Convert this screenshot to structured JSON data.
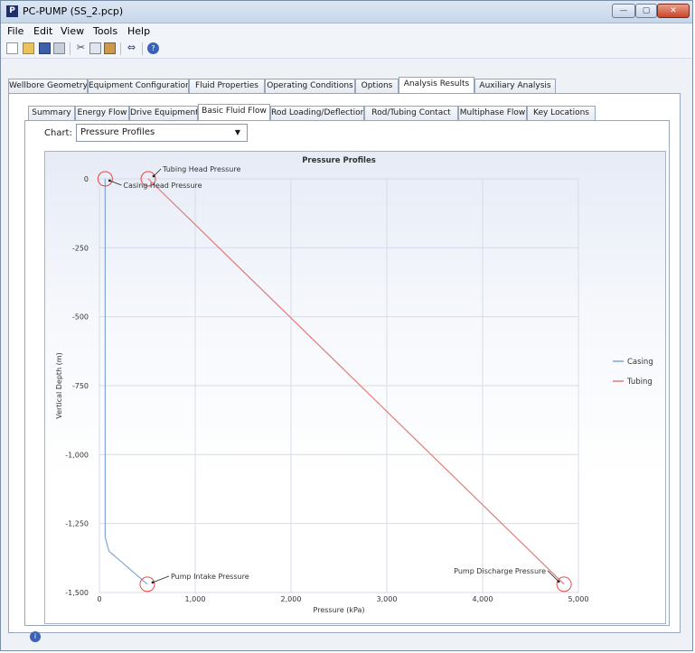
{
  "window": {
    "title": "PC-PUMP (SS_2.pcp)"
  },
  "menu": {
    "file": "File",
    "edit": "Edit",
    "view": "View",
    "tools": "Tools",
    "help": "Help"
  },
  "main_tabs": [
    {
      "label": "Wellbore Geometry"
    },
    {
      "label": "Equipment Configuration"
    },
    {
      "label": "Fluid Properties"
    },
    {
      "label": "Operating Conditions"
    },
    {
      "label": "Options"
    },
    {
      "label": "Analysis Results"
    },
    {
      "label": "Auxiliary Analysis"
    }
  ],
  "sub_tabs": [
    {
      "label": "Summary"
    },
    {
      "label": "Energy Flow"
    },
    {
      "label": "Drive Equipment"
    },
    {
      "label": "Basic Fluid Flow"
    },
    {
      "label": "Rod Loading/Deflection"
    },
    {
      "label": "Rod/Tubing Contact"
    },
    {
      "label": "Multiphase Flow"
    },
    {
      "label": "Key Locations"
    }
  ],
  "chart_selector": {
    "label": "Chart:",
    "value": "Pressure Profiles"
  },
  "chart_data": {
    "type": "line",
    "title": "Pressure Profiles",
    "xlabel": "Pressure (kPa)",
    "ylabel": "Vertical Depth (m)",
    "xlim": [
      0,
      5000
    ],
    "ylim": [
      -1500,
      0
    ],
    "x_ticks": [
      {
        "value": 0,
        "label": "0"
      },
      {
        "value": 1000,
        "label": "1,000"
      },
      {
        "value": 2000,
        "label": "2,000"
      },
      {
        "value": 3000,
        "label": "3,000"
      },
      {
        "value": 4000,
        "label": "4,000"
      },
      {
        "value": 5000,
        "label": "5,000"
      }
    ],
    "y_ticks": [
      {
        "value": 0,
        "label": "0"
      },
      {
        "value": -250,
        "label": "-250"
      },
      {
        "value": -500,
        "label": "-500"
      },
      {
        "value": -750,
        "label": "-750"
      },
      {
        "value": -1000,
        "label": "-1,000"
      },
      {
        "value": -1250,
        "label": "-1,250"
      },
      {
        "value": -1500,
        "label": "-1,500"
      }
    ],
    "grid": true,
    "legend_position": "right",
    "series": [
      {
        "name": "Casing",
        "color": "#7fa6d9",
        "x": [
          60,
          60,
          100,
          500
        ],
        "y": [
          0,
          -1300,
          -1350,
          -1470
        ]
      },
      {
        "name": "Tubing",
        "color": "#e07b7b",
        "x": [
          510,
          4850
        ],
        "y": [
          0,
          -1470
        ]
      }
    ],
    "annotations": [
      {
        "label": "Tubing Head Pressure",
        "x": 510,
        "y": 0
      },
      {
        "label": "Casing Head Pressure",
        "x": 60,
        "y": 0
      },
      {
        "label": "Pump Intake Pressure",
        "x": 500,
        "y": -1470
      },
      {
        "label": "Pump Discharge Pressure",
        "x": 4850,
        "y": -1470
      }
    ]
  }
}
